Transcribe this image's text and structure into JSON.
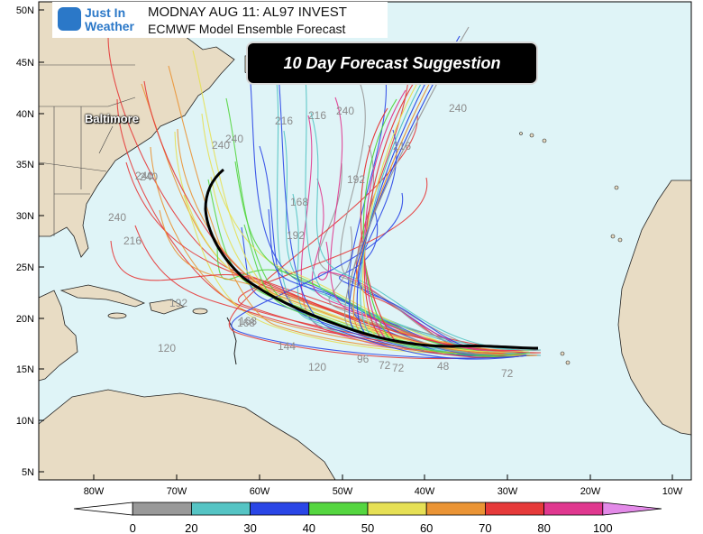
{
  "header": {
    "logo_line1": "Just In",
    "logo_line2": "Weather",
    "title": "MODNAY AUG 11: AL97 INVEST",
    "subtitle": "ECMWF Model Ensemble Forecast"
  },
  "banner": {
    "text": "10 Day Forecast Suggestion"
  },
  "map": {
    "city": "Baltimore",
    "lat_labels": [
      "50N",
      "45N",
      "40N",
      "35N",
      "30N",
      "25N",
      "20N",
      "15N",
      "10N",
      "5N"
    ],
    "lon_labels": [
      "80W",
      "70W",
      "60W",
      "50W",
      "40W",
      "30W",
      "20W",
      "10W"
    ],
    "ocean_color": "#dff4f7",
    "land_color": "#e8dcc4",
    "track_labels": [
      "240",
      "216",
      "240",
      "240",
      "216",
      "240",
      "192",
      "216",
      "240",
      "168",
      "192",
      "144",
      "168",
      "120",
      "96",
      "72",
      "72",
      "48",
      "72",
      "240",
      "240",
      "216",
      "192",
      "168",
      "120"
    ]
  },
  "colorbar": {
    "ticks": [
      "0",
      "20",
      "30",
      "40",
      "50",
      "60",
      "70",
      "80",
      "100"
    ],
    "colors": [
      "#ffffff",
      "#999999",
      "#55c4c4",
      "#2a46e6",
      "#55d640",
      "#e6e055",
      "#ea9435",
      "#e63a3a",
      "#e0388f",
      "#e38ae8"
    ]
  },
  "tracks": {
    "colors": [
      "#e63a3a",
      "#ea9435",
      "#e6e055",
      "#55d640",
      "#2a46e6",
      "#55c4c4",
      "#e0388f",
      "#999999",
      "#2a46e6",
      "#e63a3a"
    ],
    "suggestion_color": "#000000"
  }
}
